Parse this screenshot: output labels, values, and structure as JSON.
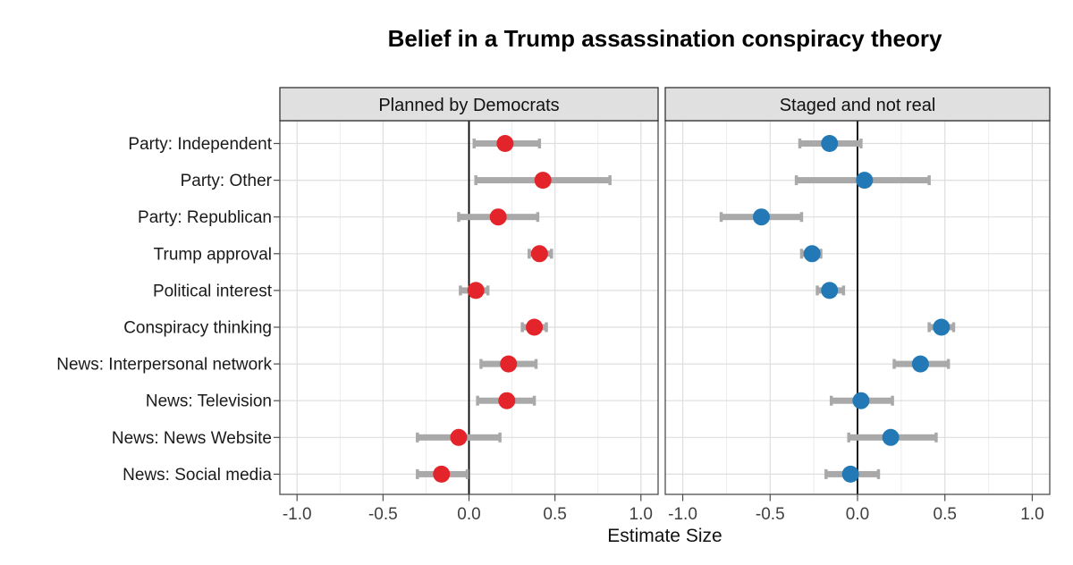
{
  "chart_data": {
    "type": "scatter",
    "subtype": "faceted dot-and-whisker coefficient plot",
    "title": "Belief in a Trump assassination conspiracy theory",
    "xlabel": "Estimate Size",
    "ylabel": "",
    "legend": "none",
    "grid": "vertical major/minor and horizontal major gridlines on",
    "xlim": [
      -1.1,
      1.1
    ],
    "x_ticks": [
      -1.0,
      -0.5,
      0.0,
      0.5,
      1.0
    ],
    "x_tick_labels": [
      "-1.0",
      "-0.5",
      "0.0",
      "0.5",
      "1.0"
    ],
    "x_minor_ticks": [
      -0.75,
      -0.25,
      0.25,
      0.75
    ],
    "reference_line_x": 0,
    "categories": [
      "Party: Independent",
      "Party: Other",
      "Party: Republican",
      "Trump approval",
      "Political interest",
      "Conspiracy thinking",
      "News: Interpersonal network",
      "News: Television",
      "News: News Website",
      "News: Social media"
    ],
    "facets": [
      {
        "label": "Planned by Democrats",
        "point_color": "#e3242b",
        "series_name": "estimate with confidence interval",
        "points": [
          {
            "estimate": 0.21,
            "ci_low": 0.03,
            "ci_high": 0.41
          },
          {
            "estimate": 0.43,
            "ci_low": 0.04,
            "ci_high": 0.82
          },
          {
            "estimate": 0.17,
            "ci_low": -0.06,
            "ci_high": 0.4
          },
          {
            "estimate": 0.41,
            "ci_low": 0.35,
            "ci_high": 0.48
          },
          {
            "estimate": 0.04,
            "ci_low": -0.05,
            "ci_high": 0.11
          },
          {
            "estimate": 0.38,
            "ci_low": 0.31,
            "ci_high": 0.45
          },
          {
            "estimate": 0.23,
            "ci_low": 0.07,
            "ci_high": 0.39
          },
          {
            "estimate": 0.22,
            "ci_low": 0.05,
            "ci_high": 0.38
          },
          {
            "estimate": -0.06,
            "ci_low": -0.3,
            "ci_high": 0.18
          },
          {
            "estimate": -0.16,
            "ci_low": -0.3,
            "ci_high": -0.01
          }
        ]
      },
      {
        "label": "Staged and not real",
        "point_color": "#2379b5",
        "series_name": "estimate with confidence interval",
        "points": [
          {
            "estimate": -0.16,
            "ci_low": -0.33,
            "ci_high": 0.02
          },
          {
            "estimate": 0.04,
            "ci_low": -0.35,
            "ci_high": 0.41
          },
          {
            "estimate": -0.55,
            "ci_low": -0.78,
            "ci_high": -0.32
          },
          {
            "estimate": -0.26,
            "ci_low": -0.32,
            "ci_high": -0.21
          },
          {
            "estimate": -0.16,
            "ci_low": -0.23,
            "ci_high": -0.08
          },
          {
            "estimate": 0.48,
            "ci_low": 0.41,
            "ci_high": 0.55
          },
          {
            "estimate": 0.36,
            "ci_low": 0.21,
            "ci_high": 0.52
          },
          {
            "estimate": 0.02,
            "ci_low": -0.15,
            "ci_high": 0.2
          },
          {
            "estimate": 0.19,
            "ci_low": -0.05,
            "ci_high": 0.45
          },
          {
            "estimate": -0.04,
            "ci_low": -0.18,
            "ci_high": 0.12
          }
        ]
      }
    ],
    "colors": {
      "red_points": "#e3242b",
      "blue_points": "#2379b5",
      "error_bar": "#a9a9a9",
      "strip_fill": "#e0e0e0",
      "strip_border": "#333333",
      "panel_border": "#4d4d4d",
      "grid_major": "#dedede",
      "grid_minor": "#ececec",
      "zero_line": "#000000",
      "axis_tick": "#4d4d4d",
      "background": "#ffffff"
    }
  }
}
